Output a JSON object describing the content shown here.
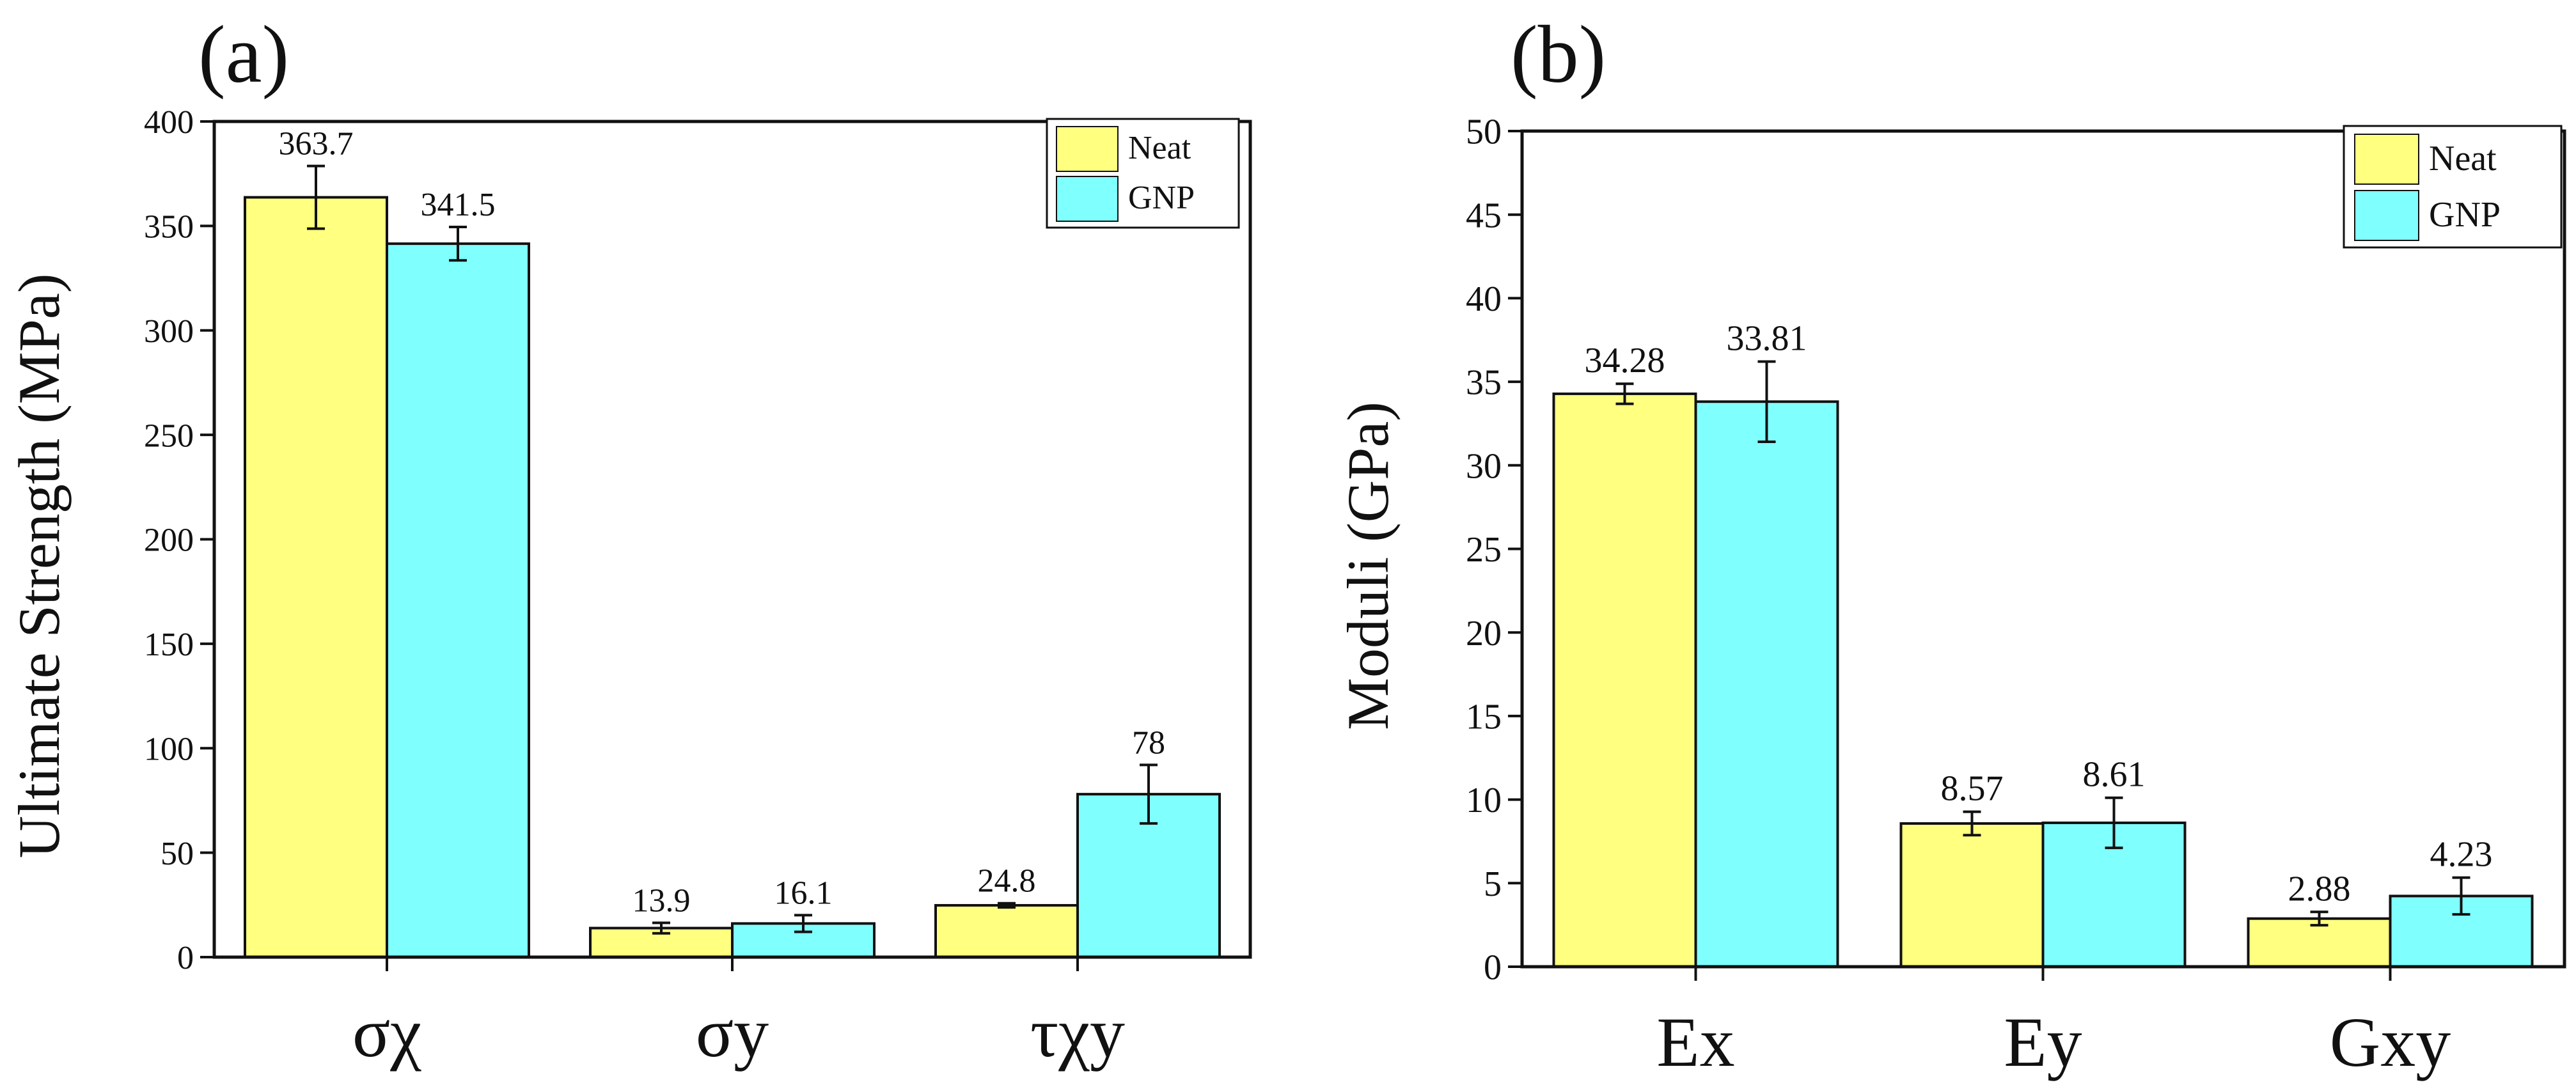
{
  "chart_data": [
    {
      "type": "bar",
      "panel_label": "(a)",
      "title": "",
      "xlabel": "",
      "ylabel": "Ultimate Strength (MPa)",
      "ylim": [
        0,
        400
      ],
      "yticks": [
        0,
        50,
        100,
        150,
        200,
        250,
        300,
        350,
        400
      ],
      "categories": [
        "σχ",
        "σy",
        "τχy"
      ],
      "series": [
        {
          "name": "Neat",
          "color": "#FFFF80",
          "values": [
            363.7,
            13.9,
            24.8
          ],
          "errors": [
            15,
            2.5,
            1
          ],
          "labels": [
            "363.7",
            "13.9",
            "24.8"
          ]
        },
        {
          "name": "GNP",
          "color": "#80FFFF",
          "values": [
            341.5,
            16.1,
            78
          ],
          "errors": [
            8,
            4,
            14
          ],
          "labels": [
            "341.5",
            "16.1",
            "78"
          ]
        }
      ],
      "legend": "top-right",
      "grid": false
    },
    {
      "type": "bar",
      "panel_label": "(b)",
      "title": "",
      "xlabel": "",
      "ylabel": "Moduli (GPa)",
      "ylim": [
        0,
        50
      ],
      "yticks": [
        0,
        5,
        10,
        15,
        20,
        25,
        30,
        35,
        40,
        45,
        50
      ],
      "categories": [
        "Ex",
        "Ey",
        "Gxy"
      ],
      "series": [
        {
          "name": "Neat",
          "color": "#FFFF80",
          "values": [
            34.28,
            8.57,
            2.88
          ],
          "errors": [
            0.6,
            0.7,
            0.4
          ],
          "labels": [
            "34.28",
            "8.57",
            "2.88"
          ]
        },
        {
          "name": "GNP",
          "color": "#80FFFF",
          "values": [
            33.81,
            8.61,
            4.23
          ],
          "errors": [
            2.4,
            1.5,
            1.1
          ],
          "labels": [
            "33.81",
            "8.61",
            "4.23"
          ]
        }
      ],
      "legend": "top-right",
      "grid": false
    }
  ]
}
